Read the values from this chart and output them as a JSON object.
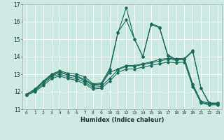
{
  "xlabel": "Humidex (Indice chaleur)",
  "background_color": "#cce9e4",
  "grid_color": "#ffffff",
  "line_color": "#1a6b5a",
  "xlim": [
    -0.5,
    23.5
  ],
  "ylim": [
    11,
    17
  ],
  "yticks": [
    11,
    12,
    13,
    14,
    15,
    16,
    17
  ],
  "xticks": [
    0,
    1,
    2,
    3,
    4,
    5,
    6,
    7,
    8,
    9,
    10,
    11,
    12,
    13,
    14,
    15,
    16,
    17,
    18,
    19,
    20,
    21,
    22,
    23
  ],
  "series": [
    [
      11.85,
      12.15,
      12.6,
      13.0,
      13.2,
      13.05,
      13.0,
      12.85,
      12.45,
      12.5,
      13.3,
      15.4,
      16.1,
      15.0,
      14.0,
      15.9,
      15.7,
      14.1,
      13.85,
      13.9,
      14.35,
      12.2,
      11.35,
      11.35
    ],
    [
      11.85,
      12.1,
      12.55,
      12.95,
      13.15,
      12.95,
      12.9,
      12.7,
      12.4,
      12.45,
      13.2,
      15.35,
      16.8,
      15.0,
      14.0,
      15.85,
      15.65,
      14.05,
      13.8,
      13.85,
      14.3,
      12.2,
      11.3,
      11.3
    ],
    [
      11.85,
      12.1,
      12.55,
      12.9,
      13.1,
      12.95,
      12.85,
      12.65,
      12.35,
      12.4,
      13.1,
      13.3,
      13.5,
      13.5,
      13.6,
      13.7,
      13.85,
      13.9,
      13.9,
      13.9,
      12.45,
      11.45,
      11.35,
      11.35
    ],
    [
      11.85,
      12.05,
      12.45,
      12.85,
      13.0,
      12.85,
      12.75,
      12.55,
      12.25,
      12.3,
      12.75,
      13.25,
      13.45,
      13.45,
      13.55,
      13.65,
      13.75,
      13.85,
      13.8,
      13.85,
      12.4,
      11.4,
      11.3,
      11.3
    ],
    [
      11.8,
      12.0,
      12.35,
      12.75,
      12.9,
      12.75,
      12.65,
      12.45,
      12.15,
      12.2,
      12.6,
      13.1,
      13.3,
      13.3,
      13.4,
      13.5,
      13.6,
      13.7,
      13.65,
      13.7,
      12.3,
      11.35,
      11.25,
      11.25
    ]
  ]
}
